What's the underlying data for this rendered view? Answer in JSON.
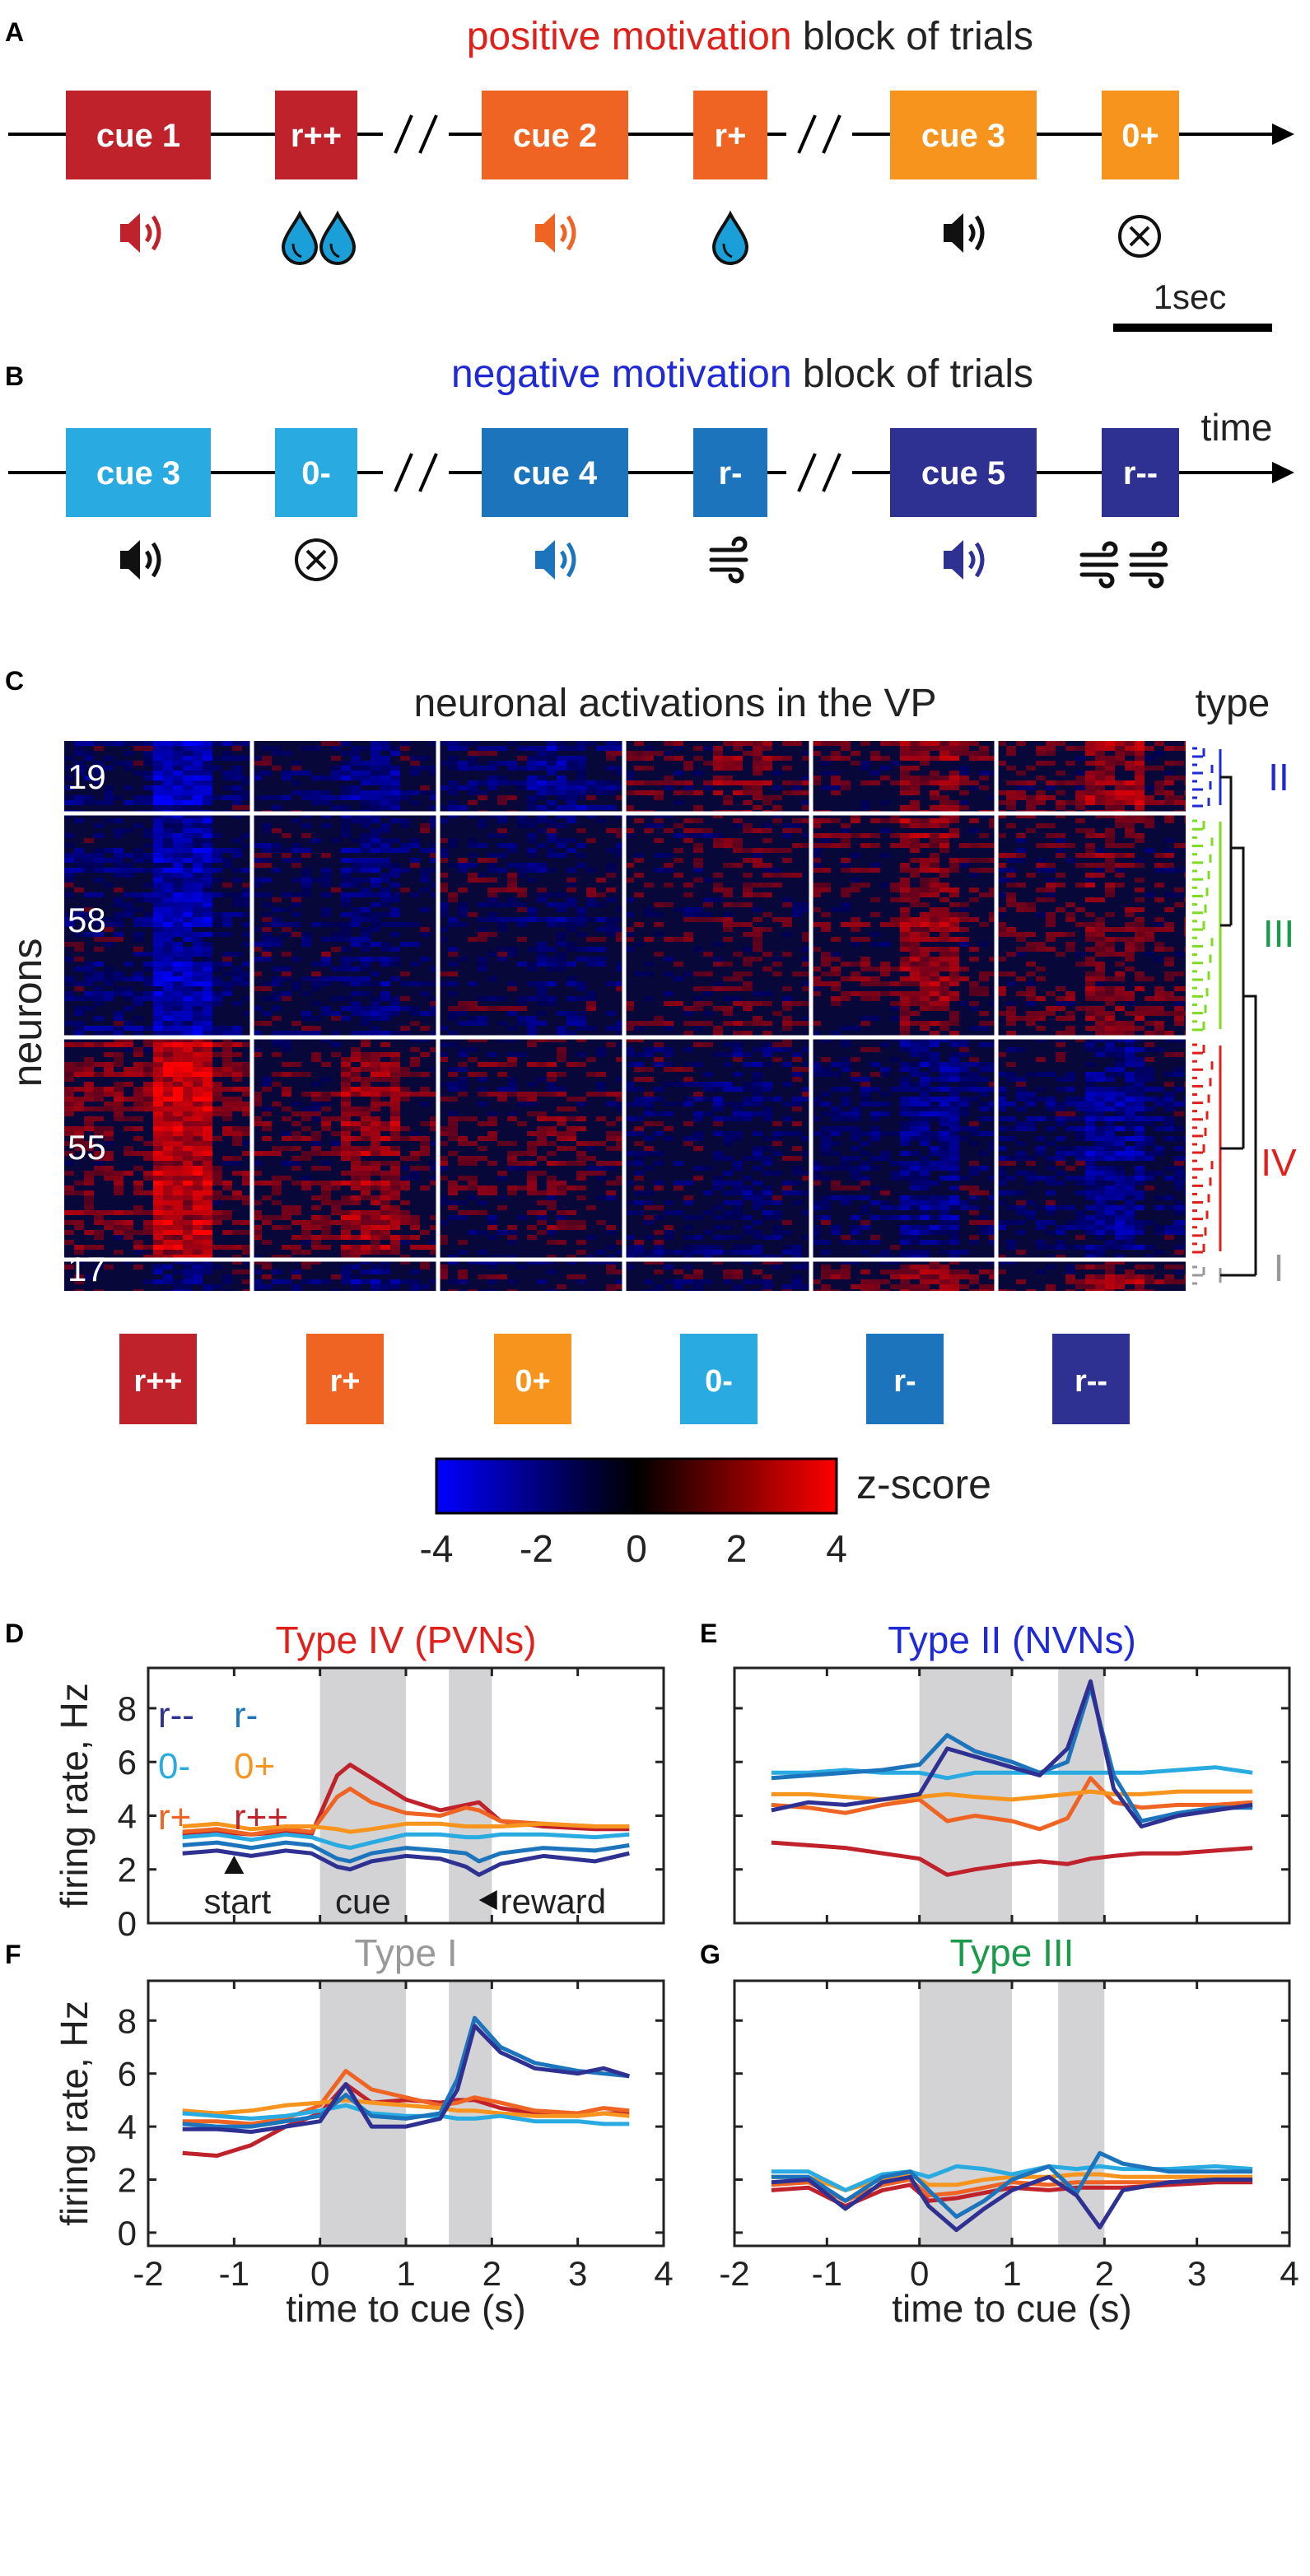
{
  "colors": {
    "cue1": "#c0222c",
    "rpp": "#c0222c",
    "cue2": "#ef6423",
    "rp": "#ef6423",
    "cue3pos": "#f7941d",
    "zp": "#f7941d",
    "cue3neg": "#29abe2",
    "zm": "#29abe2",
    "cue4": "#1c75bc",
    "rm": "#1c75bc",
    "cue5": "#2e3192",
    "rmm": "#2e3192",
    "water": "#1b9fd8",
    "typeII": "#1f2ad6",
    "typeIII": "#1a9a4a",
    "typeIV": "#e0201a",
    "typeI": "#999999"
  },
  "panelA": {
    "letter": "A",
    "title_colored": "positive motivation",
    "title_rest": " block of trials",
    "boxes": [
      "cue 1",
      "r++",
      "cue 2",
      "r+",
      "cue 3",
      "0+"
    ],
    "scale_label": "1sec",
    "icons": [
      "speaker-icon",
      "water-drops-icon",
      "speaker-icon",
      "water-drop-icon",
      "speaker-icon",
      "nothing-icon"
    ]
  },
  "panelB": {
    "letter": "B",
    "title_colored": "negative motivation",
    "title_rest": " block of trials",
    "boxes": [
      "cue 3",
      "0-",
      "cue 4",
      "r-",
      "cue 5",
      "r--"
    ],
    "time_label": "time",
    "icons": [
      "speaker-icon",
      "nothing-icon",
      "speaker-icon",
      "air-puff-icon",
      "speaker-icon",
      "air-puffs-icon"
    ]
  },
  "panelC": {
    "letter": "C",
    "title": "neuronal activations in the VP",
    "type_header": "type",
    "ylabel": "neurons",
    "groups": [
      {
        "count": "19",
        "type": "II"
      },
      {
        "count": "58",
        "type": "III"
      },
      {
        "count": "55",
        "type": "IV"
      },
      {
        "count": "17",
        "type": "I"
      }
    ],
    "conditions": [
      "r++",
      "r+",
      "0+",
      "0-",
      "r-",
      "r--"
    ],
    "colorbar": {
      "label": "z-score",
      "ticks": [
        "-4",
        "-2",
        "0",
        "2",
        "4"
      ],
      "range": [
        -4,
        4
      ]
    }
  },
  "chart_data": [
    {
      "type": "line",
      "panel": "D",
      "title": "Type IV (PVNs)",
      "xlabel": "",
      "ylabel": "firing rate, Hz",
      "xlim": [
        -2,
        4
      ],
      "ylim": [
        0,
        9.5
      ],
      "yticks": [
        "0",
        "2",
        "4",
        "6",
        "8"
      ],
      "shaded_intervals": [
        [
          0,
          1
        ],
        [
          1.5,
          2
        ]
      ],
      "legend": [
        [
          "r--",
          "r-"
        ],
        [
          "0-",
          "0+"
        ],
        [
          "r+",
          "r++"
        ]
      ],
      "annotations": [
        "start",
        "cue",
        "reward"
      ],
      "x": [
        -1.6,
        -1.2,
        -0.8,
        -0.4,
        -0.1,
        0.2,
        0.35,
        0.6,
        1.0,
        1.4,
        1.7,
        1.85,
        2.1,
        2.6,
        3.2,
        3.6
      ],
      "series": [
        {
          "name": "r--",
          "values": [
            2.6,
            2.7,
            2.5,
            2.7,
            2.6,
            2.1,
            2.0,
            2.3,
            2.5,
            2.4,
            2.1,
            1.8,
            2.2,
            2.5,
            2.3,
            2.6
          ]
        },
        {
          "name": "r-",
          "values": [
            2.9,
            3.0,
            2.8,
            3.0,
            2.9,
            2.4,
            2.3,
            2.6,
            2.8,
            2.7,
            2.6,
            2.3,
            2.6,
            2.8,
            2.7,
            2.9
          ]
        },
        {
          "name": "0-",
          "values": [
            3.2,
            3.3,
            3.1,
            3.3,
            3.2,
            2.9,
            2.8,
            3.0,
            3.3,
            3.3,
            3.2,
            3.2,
            3.3,
            3.3,
            3.2,
            3.3
          ]
        },
        {
          "name": "0+",
          "values": [
            3.6,
            3.7,
            3.5,
            3.6,
            3.6,
            3.5,
            3.4,
            3.5,
            3.7,
            3.7,
            3.6,
            3.6,
            3.6,
            3.7,
            3.6,
            3.6
          ]
        },
        {
          "name": "r+",
          "values": [
            3.4,
            3.5,
            3.3,
            3.5,
            3.4,
            4.7,
            5.0,
            4.5,
            4.1,
            4.0,
            4.3,
            4.2,
            3.8,
            3.7,
            3.6,
            3.6
          ]
        },
        {
          "name": "r++",
          "values": [
            3.3,
            3.4,
            3.3,
            3.4,
            3.3,
            5.5,
            5.9,
            5.4,
            4.6,
            4.2,
            4.4,
            4.5,
            3.8,
            3.6,
            3.5,
            3.5
          ]
        }
      ]
    },
    {
      "type": "line",
      "panel": "E",
      "title": "Type II (NVNs)",
      "xlim": [
        -2,
        4
      ],
      "ylim": [
        0,
        9.5
      ],
      "shaded_intervals": [
        [
          0,
          1
        ],
        [
          1.5,
          2
        ]
      ],
      "x": [
        -1.6,
        -1.2,
        -0.8,
        -0.4,
        0.0,
        0.3,
        0.6,
        1.0,
        1.3,
        1.6,
        1.85,
        2.1,
        2.4,
        2.8,
        3.2,
        3.6
      ],
      "series": [
        {
          "name": "r--",
          "values": [
            4.2,
            4.5,
            4.4,
            4.6,
            4.8,
            6.5,
            6.2,
            5.8,
            5.5,
            6.5,
            9.0,
            5.0,
            3.6,
            4.0,
            4.2,
            4.4
          ]
        },
        {
          "name": "r-",
          "values": [
            5.4,
            5.5,
            5.6,
            5.7,
            5.9,
            7.0,
            6.4,
            6.0,
            5.6,
            6.0,
            8.8,
            5.5,
            3.8,
            4.1,
            4.3,
            4.3
          ]
        },
        {
          "name": "0-",
          "values": [
            5.6,
            5.6,
            5.7,
            5.6,
            5.6,
            5.4,
            5.6,
            5.6,
            5.6,
            5.6,
            5.6,
            5.6,
            5.6,
            5.7,
            5.8,
            5.6
          ]
        },
        {
          "name": "0+",
          "values": [
            4.8,
            4.8,
            4.7,
            4.6,
            4.7,
            4.8,
            4.7,
            4.6,
            4.7,
            4.8,
            4.9,
            4.8,
            4.8,
            4.9,
            4.9,
            4.9
          ]
        },
        {
          "name": "r+",
          "values": [
            4.4,
            4.3,
            4.1,
            4.4,
            4.6,
            3.8,
            4.0,
            3.8,
            3.5,
            3.9,
            5.4,
            4.5,
            4.3,
            4.4,
            4.4,
            4.5
          ]
        },
        {
          "name": "r++",
          "values": [
            3.0,
            2.9,
            2.8,
            2.6,
            2.4,
            1.8,
            2.0,
            2.2,
            2.3,
            2.2,
            2.4,
            2.5,
            2.6,
            2.6,
            2.7,
            2.8
          ]
        }
      ]
    },
    {
      "type": "line",
      "panel": "F",
      "title": "Type I",
      "xlabel": "time to cue (s)",
      "ylabel": "firing rate, Hz",
      "xlim": [
        -2,
        4
      ],
      "ylim": [
        -0.5,
        9.5
      ],
      "yticks": [
        "0",
        "2",
        "4",
        "6",
        "8"
      ],
      "xticks": [
        "-2",
        "-1",
        "0",
        "1",
        "2",
        "3",
        "4"
      ],
      "shaded_intervals": [
        [
          0,
          1
        ],
        [
          1.5,
          2
        ]
      ],
      "x": [
        -1.6,
        -1.2,
        -0.8,
        -0.4,
        0.0,
        0.3,
        0.6,
        1.0,
        1.4,
        1.6,
        1.8,
        2.1,
        2.5,
        3.0,
        3.3,
        3.6
      ],
      "series": [
        {
          "name": "r--",
          "values": [
            3.9,
            3.9,
            3.8,
            4.0,
            4.2,
            5.6,
            4.0,
            4.0,
            4.3,
            5.4,
            7.8,
            6.8,
            6.2,
            6.0,
            6.2,
            5.9
          ]
        },
        {
          "name": "r-",
          "values": [
            4.1,
            4.0,
            4.0,
            4.2,
            4.4,
            5.2,
            4.4,
            4.3,
            4.5,
            5.8,
            8.1,
            7.0,
            6.4,
            6.1,
            6.0,
            5.9
          ]
        },
        {
          "name": "0-",
          "values": [
            4.5,
            4.4,
            4.3,
            4.4,
            4.6,
            4.8,
            4.5,
            4.4,
            4.4,
            4.3,
            4.3,
            4.4,
            4.2,
            4.2,
            4.1,
            4.1
          ]
        },
        {
          "name": "0+",
          "values": [
            4.6,
            4.5,
            4.6,
            4.8,
            4.9,
            5.0,
            4.9,
            4.8,
            4.7,
            4.6,
            4.6,
            4.5,
            4.4,
            4.4,
            4.5,
            4.4
          ]
        },
        {
          "name": "r+",
          "values": [
            4.2,
            4.2,
            4.1,
            4.3,
            4.8,
            6.1,
            5.4,
            5.1,
            4.8,
            4.9,
            5.1,
            4.9,
            4.6,
            4.5,
            4.7,
            4.6
          ]
        },
        {
          "name": "r++",
          "values": [
            3.0,
            2.9,
            3.3,
            4.0,
            4.5,
            5.6,
            4.9,
            5.0,
            4.9,
            5.0,
            5.0,
            4.7,
            4.5,
            4.4,
            4.5,
            4.5
          ]
        }
      ]
    },
    {
      "type": "line",
      "panel": "G",
      "title": "Type III",
      "xlabel": "time to cue (s)",
      "xlim": [
        -2,
        4
      ],
      "ylim": [
        -0.5,
        9.5
      ],
      "xticks": [
        "-2",
        "-1",
        "0",
        "1",
        "2",
        "3",
        "4"
      ],
      "shaded_intervals": [
        [
          0,
          1
        ],
        [
          1.5,
          2
        ]
      ],
      "x": [
        -1.6,
        -1.2,
        -0.8,
        -0.4,
        -0.1,
        0.1,
        0.4,
        0.7,
        1.0,
        1.4,
        1.7,
        1.95,
        2.2,
        2.7,
        3.2,
        3.6
      ],
      "series": [
        {
          "name": "r--",
          "values": [
            1.9,
            2.0,
            0.9,
            1.9,
            2.1,
            1.0,
            0.1,
            0.9,
            1.6,
            2.1,
            1.4,
            0.2,
            1.6,
            1.9,
            2.0,
            2.0
          ]
        },
        {
          "name": "r-",
          "values": [
            2.1,
            2.1,
            1.2,
            2.1,
            2.3,
            1.6,
            0.6,
            1.2,
            2.0,
            2.5,
            1.5,
            3.0,
            2.6,
            2.3,
            2.3,
            2.3
          ]
        },
        {
          "name": "0-",
          "values": [
            2.3,
            2.3,
            1.6,
            2.2,
            2.3,
            2.1,
            2.5,
            2.4,
            2.2,
            2.5,
            2.4,
            2.5,
            2.4,
            2.4,
            2.5,
            2.4
          ]
        },
        {
          "name": "0+",
          "values": [
            2.1,
            2.1,
            1.6,
            2.0,
            2.2,
            1.8,
            1.8,
            2.0,
            2.1,
            2.1,
            2.2,
            2.2,
            2.1,
            2.1,
            2.1,
            2.1
          ]
        },
        {
          "name": "r+",
          "values": [
            1.8,
            1.9,
            1.2,
            1.8,
            2.0,
            1.4,
            1.5,
            1.7,
            1.9,
            1.8,
            1.9,
            1.9,
            1.9,
            1.9,
            2.0,
            2.0
          ]
        },
        {
          "name": "r++",
          "values": [
            1.6,
            1.7,
            1.0,
            1.6,
            1.8,
            1.2,
            1.3,
            1.5,
            1.7,
            1.6,
            1.7,
            1.7,
            1.7,
            1.8,
            1.9,
            1.9
          ]
        }
      ]
    }
  ]
}
